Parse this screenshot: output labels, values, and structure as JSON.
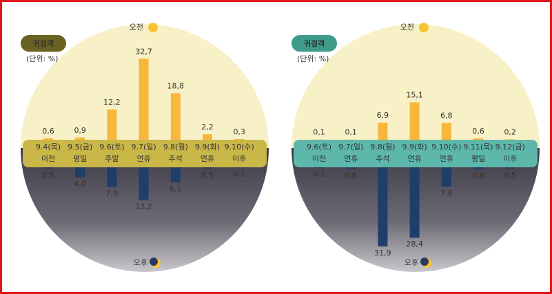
{
  "chart_data": [
    {
      "type": "diverging-bar",
      "title": "귀성객",
      "unit_note": "(단위: %)",
      "categories": [
        "9.4(목)",
        "9.5(금)",
        "9.6(토)",
        "9.7(일)",
        "9.8(월)",
        "9.9(화)",
        "9.10(수)"
      ],
      "category_notes": [
        "이전",
        "평일",
        "주말",
        "연휴",
        "추석",
        "연휴",
        "이후"
      ],
      "label_colors": [
        "#ffffff",
        "#ffffff",
        "#e23b22",
        "#e23b22",
        "#e23b22",
        "#e23b22",
        "#ffffff"
      ],
      "band_color": "#c9b748",
      "title_color": "#6a6220",
      "series": [
        {
          "name": "오전",
          "color": "#f7b73c",
          "values": [
            0.6,
            0.9,
            12.2,
            32.7,
            18.8,
            2.2,
            0.3
          ],
          "value_labels": [
            "0,6",
            "0,9",
            "12,2",
            "32,7",
            "18,8",
            "2,2",
            "0,3"
          ]
        },
        {
          "name": "오후",
          "color": "#1f3e6a",
          "values": [
            0.5,
            4.0,
            7.9,
            13.2,
            6.1,
            0.5,
            0.1
          ],
          "value_labels": [
            "0,5",
            "4,0",
            "7,9",
            "13,2",
            "6,1",
            "0,5",
            "0,1"
          ]
        }
      ]
    },
    {
      "type": "diverging-bar",
      "title": "귀경객",
      "unit_note": "(단위: %)",
      "categories": [
        "9.6(토)",
        "9.7(일)",
        "9.8(월)",
        "9.9(화)",
        "9.10(수)",
        "9.11(목)",
        "9.12(금)"
      ],
      "category_notes": [
        "이전",
        "연휴",
        "추석",
        "연휴",
        "연휴",
        "평일",
        "이후"
      ],
      "label_colors": [
        "#ffffff",
        "#e23b22",
        "#e23b22",
        "#e23b22",
        "#e23b22",
        "#ffffff",
        "#ffffff"
      ],
      "band_color": "#5db7ab",
      "title_color": "#3e9b8a",
      "series": [
        {
          "name": "오전",
          "color": "#f7b73c",
          "values": [
            0.1,
            0.1,
            6.9,
            15.1,
            6.8,
            0.6,
            0.2
          ],
          "value_labels": [
            "0,1",
            "0,1",
            "6,9",
            "15,1",
            "6,8",
            "0,6",
            "0,2"
          ]
        },
        {
          "name": "오후",
          "color": "#1f3e6a",
          "values": [
            0.2,
            0.6,
            31.9,
            28.4,
            7.8,
            0.8,
            0.5
          ],
          "value_labels": [
            "0,2",
            "0,6",
            "31,9",
            "28,4",
            "7,8",
            "0,8",
            "0,5"
          ]
        }
      ]
    }
  ]
}
